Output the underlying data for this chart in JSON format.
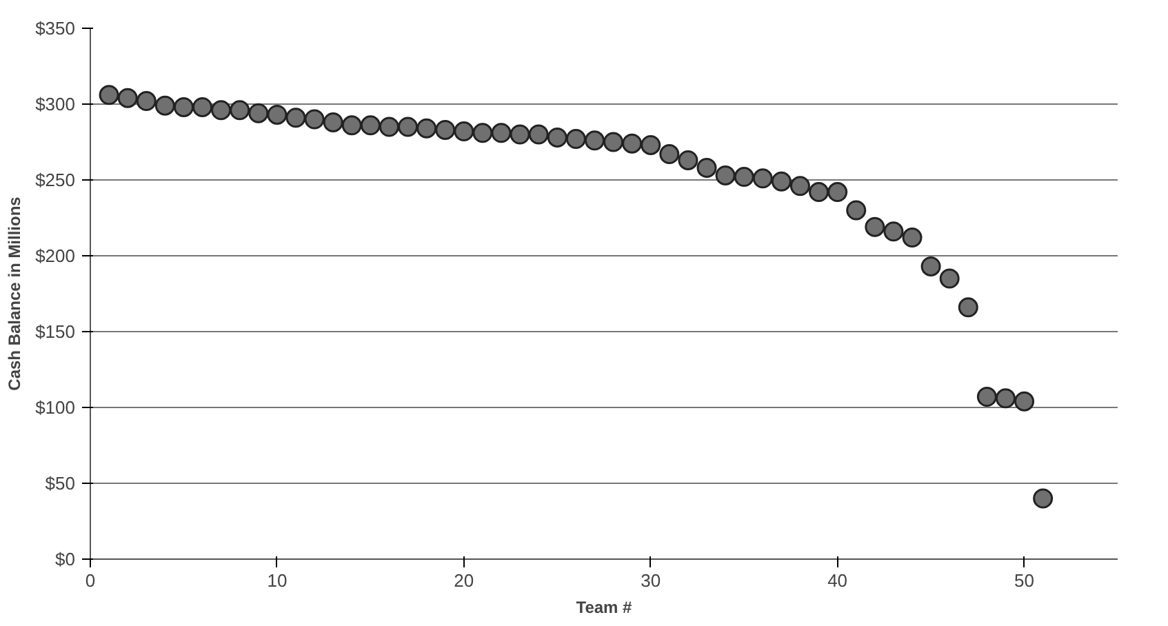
{
  "chart_data": {
    "type": "scatter",
    "xlabel": "Team #",
    "ylabel": "Cash Balance in Millions",
    "x": [
      1,
      2,
      3,
      4,
      5,
      6,
      7,
      8,
      9,
      10,
      11,
      12,
      13,
      14,
      15,
      16,
      17,
      18,
      19,
      20,
      21,
      22,
      23,
      24,
      25,
      26,
      27,
      28,
      29,
      30,
      31,
      32,
      33,
      34,
      35,
      36,
      37,
      38,
      39,
      40,
      41,
      42,
      43,
      44,
      45,
      46,
      47,
      48,
      49,
      50,
      51
    ],
    "series": [
      {
        "color": "#707070",
        "values": [
          306,
          304,
          302,
          299,
          298,
          298,
          296,
          296,
          294,
          293,
          291,
          290,
          288,
          286,
          286,
          285,
          285,
          284,
          283,
          282,
          281,
          281,
          280,
          280,
          278,
          277,
          276,
          275,
          274,
          273,
          267,
          263,
          258,
          253,
          252,
          251,
          249,
          246,
          242,
          242,
          230,
          219,
          216,
          212,
          193,
          185,
          166,
          107,
          106,
          104,
          40
        ]
      }
    ],
    "xlim": [
      0,
      55
    ],
    "xticks": [
      0,
      10,
      20,
      30,
      40,
      50
    ],
    "ylim": [
      0,
      350
    ],
    "yticks": [
      {
        "value": 0,
        "label": "$0"
      },
      {
        "value": 50,
        "label": "$50"
      },
      {
        "value": 100,
        "label": "$100"
      },
      {
        "value": 150,
        "label": "$150"
      },
      {
        "value": 200,
        "label": "$200"
      },
      {
        "value": 250,
        "label": "$250"
      },
      {
        "value": 300,
        "label": "$300"
      },
      {
        "value": 350,
        "label": "$350"
      }
    ],
    "grid": "y",
    "marker": "circle"
  }
}
